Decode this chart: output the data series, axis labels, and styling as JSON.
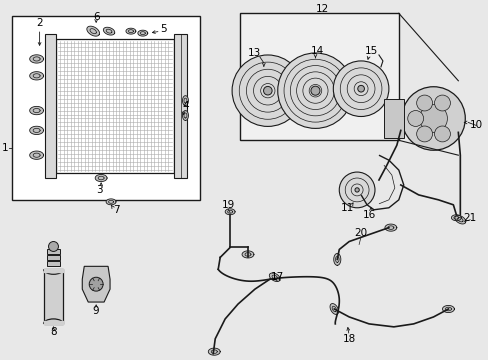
{
  "bg_color": "#e8e8e8",
  "line_color": "#1a1a1a",
  "text_color": "#000000",
  "fig_width": 4.89,
  "fig_height": 3.6,
  "dpi": 100,
  "label_fs": 7.5
}
